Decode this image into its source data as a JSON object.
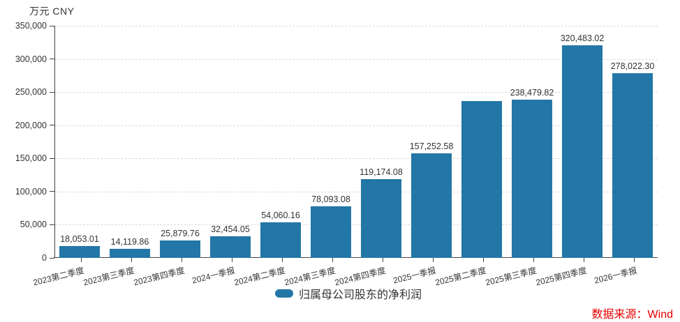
{
  "header": {
    "unit_label": "万元  CNY"
  },
  "legend": {
    "label": "归属母公司股东的净利润"
  },
  "footer": {
    "source": "数据来源：Wind"
  },
  "colors": {
    "bar": "#2377A6",
    "grid": "#d9d9d9",
    "axis": "#444444",
    "text": "#333333",
    "source_red": "#e60000"
  },
  "chart_data": {
    "type": "bar",
    "title": "",
    "ylabel": "万元 CNY",
    "xlabel": "",
    "ylim": [
      0,
      350000
    ],
    "ytick_interval": 50000,
    "yticks": [
      0,
      50000,
      100000,
      150000,
      200000,
      250000,
      300000,
      350000
    ],
    "ytick_labels": [
      "0",
      "50,000",
      "100,000",
      "150,000",
      "200,000",
      "250,000",
      "300,000",
      "350,000"
    ],
    "grid": "horizontal-dashed",
    "legend_position": "bottom-center",
    "categories": [
      "2023第二季度",
      "2023第三季度",
      "2023第四季度",
      "2024一季报",
      "2024第二季度",
      "2024第三季度",
      "2024第四季度",
      "2025一季报",
      "2025第二季度",
      "2025第三季度",
      "2025第四季度",
      "2026一季报"
    ],
    "series": [
      {
        "name": "归属母公司股东的净利润",
        "values": [
          18053.01,
          14119.86,
          25879.76,
          32454.05,
          54060.16,
          78093.08,
          119174.08,
          157252.58,
          237000,
          238479.82,
          320483.02,
          278022.3
        ],
        "data_labels": [
          "18,053.01",
          "14,119.86",
          "25,879.76",
          "32,454.05",
          "54,060.16",
          "78,093.08",
          "119,174.08",
          "157,252.58",
          "",
          "238,479.82",
          "320,483.02",
          "278,022.30"
        ]
      }
    ]
  }
}
